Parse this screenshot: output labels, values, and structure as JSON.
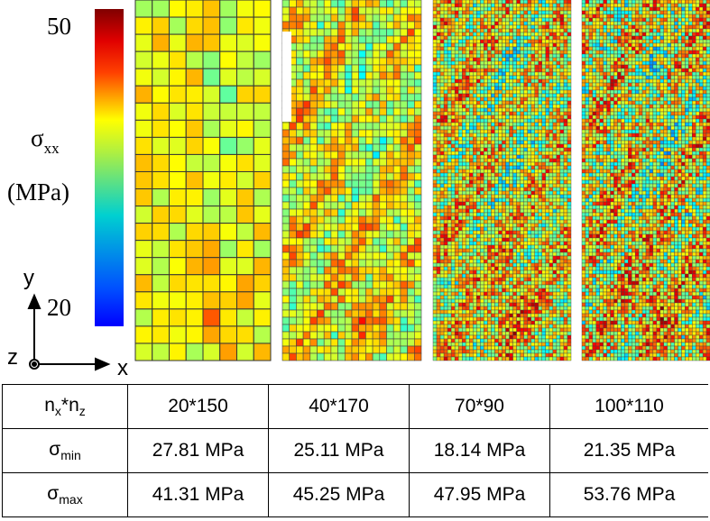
{
  "colorbar": {
    "max": "50",
    "min": "20",
    "symbol": "σ",
    "subscript": "xx",
    "unit": "(MPa)"
  },
  "axes": {
    "y": "y",
    "z": "z",
    "x": "x"
  },
  "table": {
    "rows": [
      {
        "label": {
          "base": "n",
          "sub": "x",
          "mid": "*n",
          "sub2": "z"
        },
        "cells": [
          "20*150",
          "40*170",
          "70*90",
          "100*110"
        ]
      },
      {
        "label": {
          "base": "σ",
          "sub": "min"
        },
        "cells": [
          "27.81 MPa",
          "25.11 MPa",
          "18.14 MPa",
          "21.35 MPa"
        ]
      },
      {
        "label": {
          "base": "σ",
          "sub": "max"
        },
        "cells": [
          "41.31 MPa",
          "45.25 MPa",
          "47.95 MPa",
          "53.76 MPa"
        ]
      }
    ]
  }
}
